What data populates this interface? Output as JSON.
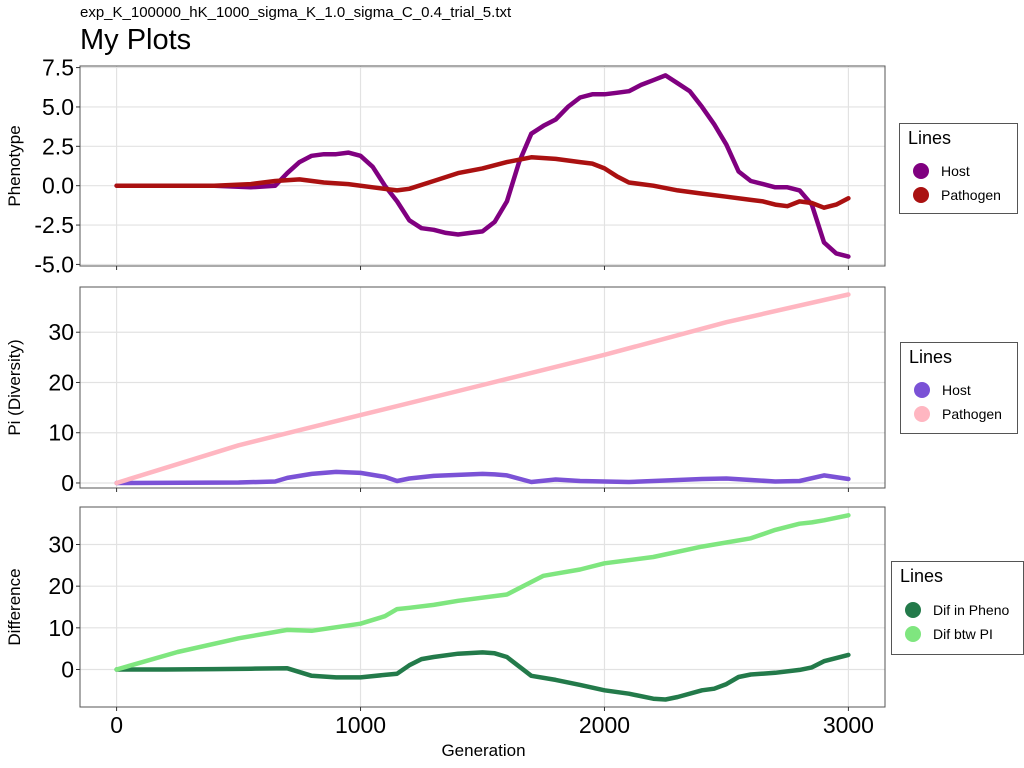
{
  "header": {
    "subtitle": "exp_K_100000_hK_1000_sigma_K_1.0_sigma_C_0.4_trial_5.txt",
    "title": "My Plots"
  },
  "chart_data": [
    {
      "type": "line",
      "ylabel": "Phenotype",
      "xlim": [
        -150,
        3150
      ],
      "ylim": [
        -5.1,
        7.6
      ],
      "yticks": [
        7.5,
        5.0,
        2.5,
        0.0,
        -2.5,
        -5.0
      ],
      "ytick_labels": [
        "7.5",
        "5.0",
        "2.5",
        "0.0",
        "-2.5",
        "-5.0"
      ],
      "xticks": [
        0,
        1000,
        2000,
        3000
      ],
      "grid": true,
      "legend": {
        "title": "Lines",
        "position": "right"
      },
      "series": [
        {
          "name": "Host",
          "color": "#800080",
          "x": [
            0,
            200,
            400,
            550,
            650,
            700,
            750,
            800,
            850,
            900,
            950,
            1000,
            1050,
            1100,
            1150,
            1200,
            1250,
            1300,
            1350,
            1400,
            1450,
            1500,
            1550,
            1600,
            1650,
            1700,
            1750,
            1800,
            1850,
            1900,
            1950,
            2000,
            2050,
            2100,
            2150,
            2200,
            2250,
            2300,
            2350,
            2400,
            2450,
            2500,
            2550,
            2600,
            2650,
            2700,
            2750,
            2800,
            2850,
            2900,
            2950,
            3000
          ],
          "y": [
            0.0,
            0.0,
            0.0,
            -0.1,
            0.0,
            0.8,
            1.5,
            1.9,
            2.0,
            2.0,
            2.1,
            1.9,
            1.2,
            0.0,
            -1.0,
            -2.2,
            -2.7,
            -2.8,
            -3.0,
            -3.1,
            -3.0,
            -2.9,
            -2.3,
            -1.0,
            1.5,
            3.3,
            3.8,
            4.2,
            5.0,
            5.6,
            5.8,
            5.8,
            5.9,
            6.0,
            6.4,
            6.7,
            7.0,
            6.5,
            6.0,
            5.0,
            3.9,
            2.6,
            0.9,
            0.3,
            0.1,
            -0.1,
            -0.1,
            -0.3,
            -1.2,
            -3.6,
            -4.3,
            -4.5
          ]
        },
        {
          "name": "Pathogen",
          "color": "#aa1111",
          "x": [
            0,
            200,
            400,
            550,
            650,
            750,
            850,
            950,
            1050,
            1150,
            1200,
            1300,
            1400,
            1500,
            1600,
            1700,
            1800,
            1900,
            1950,
            2000,
            2050,
            2100,
            2200,
            2300,
            2400,
            2500,
            2600,
            2650,
            2700,
            2750,
            2800,
            2850,
            2900,
            2950,
            3000
          ],
          "y": [
            0.0,
            0.0,
            0.0,
            0.1,
            0.3,
            0.4,
            0.2,
            0.1,
            -0.1,
            -0.3,
            -0.2,
            0.3,
            0.8,
            1.1,
            1.5,
            1.8,
            1.7,
            1.5,
            1.4,
            1.1,
            0.6,
            0.2,
            0.0,
            -0.3,
            -0.5,
            -0.7,
            -0.9,
            -1.0,
            -1.2,
            -1.3,
            -1.0,
            -1.1,
            -1.4,
            -1.2,
            -0.8
          ]
        }
      ]
    },
    {
      "type": "line",
      "ylabel": "Pi (Diversity)",
      "xlim": [
        -150,
        3150
      ],
      "ylim": [
        -1,
        39
      ],
      "yticks": [
        0,
        10,
        20,
        30
      ],
      "ytick_labels": [
        "0",
        "10",
        "20",
        "30"
      ],
      "xticks": [
        0,
        1000,
        2000,
        3000
      ],
      "grid": true,
      "legend": {
        "title": "Lines",
        "position": "right"
      },
      "series": [
        {
          "name": "Host",
          "color": "#7b52d6",
          "x": [
            0,
            500,
            650,
            700,
            800,
            900,
            1000,
            1100,
            1150,
            1200,
            1300,
            1400,
            1500,
            1550,
            1600,
            1700,
            1800,
            1900,
            2000,
            2100,
            2200,
            2300,
            2400,
            2500,
            2600,
            2700,
            2800,
            2900,
            3000
          ],
          "y": [
            0.0,
            0.1,
            0.3,
            1.0,
            1.8,
            2.2,
            2.0,
            1.2,
            0.4,
            0.9,
            1.4,
            1.6,
            1.8,
            1.7,
            1.5,
            0.2,
            0.7,
            0.4,
            0.3,
            0.2,
            0.4,
            0.6,
            0.8,
            0.9,
            0.6,
            0.3,
            0.4,
            1.5,
            0.8
          ]
        },
        {
          "name": "Pathogen",
          "color": "#ffb6c1",
          "x": [
            0,
            500,
            1000,
            1500,
            2000,
            2500,
            3000
          ],
          "y": [
            0.0,
            7.5,
            13.5,
            19.5,
            25.5,
            32.0,
            37.5
          ]
        }
      ]
    },
    {
      "type": "line",
      "xlabel": "Generation",
      "ylabel": "Difference",
      "xlim": [
        -150,
        3150
      ],
      "ylim": [
        -9,
        39
      ],
      "yticks": [
        0,
        10,
        20,
        30
      ],
      "ytick_labels": [
        "0",
        "10",
        "20",
        "30"
      ],
      "xticks": [
        0,
        1000,
        2000,
        3000
      ],
      "xtick_labels": [
        "0",
        "1000",
        "2000",
        "3000"
      ],
      "grid": true,
      "legend": {
        "title": "Lines",
        "position": "right"
      },
      "series": [
        {
          "name": "Dif in Pheno",
          "color": "#237a4a",
          "x": [
            0,
            200,
            400,
            550,
            700,
            800,
            900,
            1000,
            1100,
            1150,
            1200,
            1250,
            1300,
            1400,
            1500,
            1550,
            1600,
            1700,
            1800,
            1900,
            2000,
            2100,
            2200,
            2250,
            2300,
            2400,
            2450,
            2500,
            2550,
            2600,
            2700,
            2800,
            2850,
            2900,
            3000
          ],
          "y": [
            0.0,
            0.0,
            0.1,
            0.2,
            0.3,
            -1.5,
            -1.9,
            -1.9,
            -1.3,
            -1.0,
            1.0,
            2.5,
            3.0,
            3.8,
            4.1,
            3.9,
            3.0,
            -1.5,
            -2.5,
            -3.7,
            -5.0,
            -5.8,
            -7.0,
            -7.2,
            -6.6,
            -5.0,
            -4.6,
            -3.5,
            -1.8,
            -1.2,
            -0.8,
            -0.1,
            0.5,
            2.0,
            3.5
          ]
        },
        {
          "name": "Dif btw PI",
          "color": "#7fe67f",
          "x": [
            0,
            250,
            500,
            700,
            800,
            1000,
            1100,
            1150,
            1200,
            1300,
            1400,
            1600,
            1650,
            1700,
            1750,
            1800,
            1900,
            2000,
            2200,
            2400,
            2600,
            2700,
            2800,
            2850,
            2900,
            3000
          ],
          "y": [
            0.0,
            4.2,
            7.5,
            9.5,
            9.3,
            11.0,
            12.8,
            14.5,
            14.8,
            15.5,
            16.5,
            18.0,
            19.5,
            21.0,
            22.5,
            23.0,
            24.0,
            25.5,
            27.0,
            29.5,
            31.5,
            33.5,
            35.0,
            35.3,
            35.8,
            37.0
          ]
        }
      ]
    }
  ]
}
